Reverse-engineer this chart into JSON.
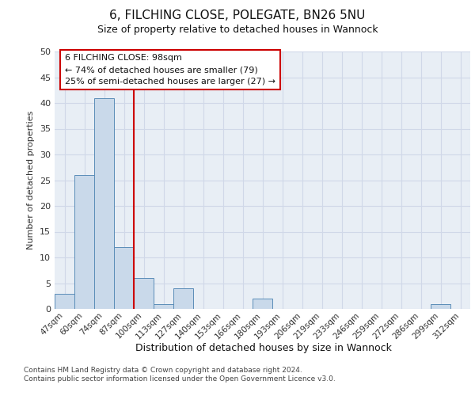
{
  "title": "6, FILCHING CLOSE, POLEGATE, BN26 5NU",
  "subtitle": "Size of property relative to detached houses in Wannock",
  "xlabel": "Distribution of detached houses by size in Wannock",
  "ylabel": "Number of detached properties",
  "categories": [
    "47sqm",
    "60sqm",
    "74sqm",
    "87sqm",
    "100sqm",
    "113sqm",
    "127sqm",
    "140sqm",
    "153sqm",
    "166sqm",
    "180sqm",
    "193sqm",
    "206sqm",
    "219sqm",
    "233sqm",
    "246sqm",
    "259sqm",
    "272sqm",
    "286sqm",
    "299sqm",
    "312sqm"
  ],
  "values": [
    3,
    26,
    41,
    12,
    6,
    1,
    4,
    0,
    0,
    0,
    2,
    0,
    0,
    0,
    0,
    0,
    0,
    0,
    0,
    1,
    0
  ],
  "bar_color": "#c9d9ea",
  "bar_edge_color": "#5b8db8",
  "grid_color": "#d0d8e8",
  "background_color": "#e8eef5",
  "vline_x_index": 4,
  "vline_color": "#cc0000",
  "annotation_text": "6 FILCHING CLOSE: 98sqm\n← 74% of detached houses are smaller (79)\n25% of semi-detached houses are larger (27) →",
  "annotation_box_color": "#ffffff",
  "annotation_box_edge_color": "#cc0000",
  "ylim": [
    0,
    50
  ],
  "yticks": [
    0,
    5,
    10,
    15,
    20,
    25,
    30,
    35,
    40,
    45,
    50
  ],
  "footer_line1": "Contains HM Land Registry data © Crown copyright and database right 2024.",
  "footer_line2": "Contains public sector information licensed under the Open Government Licence v3.0.",
  "title_fontsize": 11,
  "subtitle_fontsize": 9,
  "ylabel_fontsize": 8,
  "xlabel_fontsize": 9,
  "tick_fontsize": 7.5,
  "footer_fontsize": 6.5,
  "annotation_fontsize": 8
}
